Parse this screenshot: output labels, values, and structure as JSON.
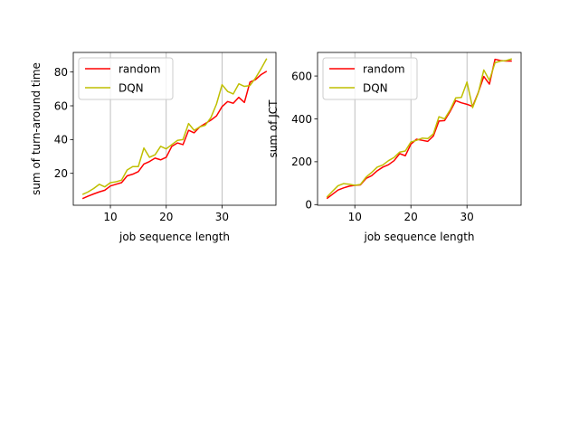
{
  "chart_data": [
    {
      "type": "line",
      "xlabel": "job sequence length",
      "ylabel": "sum of turn-around time",
      "xlim": [
        3.35,
        39.65
      ],
      "ylim": [
        1.1,
        91.6
      ],
      "xticks": [
        10,
        20,
        30
      ],
      "yticks": [
        20,
        40,
        60,
        80
      ],
      "grid": "vertical at x ticks",
      "legend_position": "top-left",
      "x": [
        5,
        6,
        7,
        8,
        9,
        10,
        11,
        12,
        13,
        14,
        15,
        16,
        17,
        18,
        19,
        20,
        21,
        22,
        23,
        24,
        25,
        26,
        27,
        28,
        29,
        30,
        31,
        32,
        33,
        34,
        35,
        36,
        37,
        38
      ],
      "series": [
        {
          "name": "random",
          "color": "#ff0000",
          "values": [
            5,
            6.5,
            7.8,
            9,
            10,
            12.5,
            13.5,
            14.5,
            18.5,
            19.5,
            21,
            25.5,
            27,
            29,
            28,
            29.5,
            36,
            38,
            37,
            45.5,
            44,
            47.5,
            49.5,
            51.5,
            54,
            59.5,
            62.5,
            61.5,
            65,
            62,
            74,
            75.5,
            78.5,
            80.5
          ]
        },
        {
          "name": "DQN",
          "color": "#bfbf00",
          "values": [
            7.5,
            9,
            11,
            13.5,
            12,
            14.5,
            15,
            16,
            22,
            24,
            24,
            35,
            29.5,
            31,
            36,
            34.5,
            37,
            39.5,
            40,
            49.5,
            45.5,
            47.5,
            48.5,
            53,
            61,
            72.5,
            68.5,
            67,
            73,
            71.5,
            72,
            76.5,
            82,
            88
          ]
        }
      ]
    },
    {
      "type": "line",
      "xlabel": "job sequence length",
      "ylabel": "sum of JCT",
      "xlim": [
        3.35,
        39.65
      ],
      "ylim": [
        -3,
        710
      ],
      "xticks": [
        10,
        20,
        30
      ],
      "yticks": [
        0,
        200,
        400,
        600
      ],
      "grid": "vertical at x ticks",
      "legend_position": "top-left",
      "x": [
        5,
        6,
        7,
        8,
        9,
        10,
        11,
        12,
        13,
        14,
        15,
        16,
        17,
        18,
        19,
        20,
        21,
        22,
        23,
        24,
        25,
        26,
        27,
        28,
        29,
        30,
        31,
        32,
        33,
        34,
        35,
        36,
        37,
        38
      ],
      "series": [
        {
          "name": "random",
          "color": "#ff0000",
          "values": [
            28,
            48,
            68,
            78,
            86,
            90,
            92,
            122,
            135,
            158,
            175,
            186,
            205,
            238,
            228,
            282,
            305,
            300,
            295,
            320,
            390,
            392,
            435,
            485,
            475,
            468,
            458,
            522,
            598,
            562,
            678,
            672,
            670,
            670
          ]
        },
        {
          "name": "DQN",
          "color": "#bfbf00",
          "values": [
            35,
            62,
            88,
            98,
            95,
            90,
            94,
            128,
            150,
            175,
            185,
            205,
            220,
            245,
            250,
            292,
            300,
            310,
            308,
            330,
            410,
            400,
            442,
            498,
            500,
            572,
            452,
            520,
            628,
            580,
            662,
            670,
            672,
            680
          ]
        }
      ]
    }
  ]
}
